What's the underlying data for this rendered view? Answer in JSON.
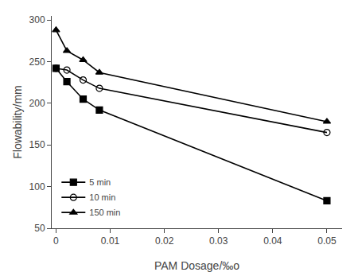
{
  "chart_data": {
    "type": "line",
    "x_label": "PAM Dosage/‰o",
    "y_label": "Flowability/mm",
    "x": [
      0,
      0.002,
      0.005,
      0.008,
      0.05
    ],
    "series": [
      {
        "name": "5 min",
        "values": [
          242,
          226,
          205,
          192,
          83
        ],
        "color": "black",
        "marker": "square",
        "line_style": "solid"
      },
      {
        "name": "10 min",
        "values": [
          242,
          240,
          228,
          218,
          165
        ],
        "color": "black",
        "marker": "circle-open",
        "line_style": "solid"
      },
      {
        "name": "150 min",
        "values": [
          288,
          263,
          252,
          237,
          178
        ],
        "color": "black",
        "marker": "triangle-up",
        "line_style": "solid"
      }
    ],
    "xlim": [
      -0.0008,
      0.0528
    ],
    "ylim": [
      50,
      305
    ],
    "xticks": [
      0,
      0.01,
      0.02,
      0.03,
      0.04,
      0.05
    ],
    "yticks": [
      50,
      100,
      150,
      200,
      250,
      300
    ],
    "grid": false,
    "legend": "lower left"
  }
}
